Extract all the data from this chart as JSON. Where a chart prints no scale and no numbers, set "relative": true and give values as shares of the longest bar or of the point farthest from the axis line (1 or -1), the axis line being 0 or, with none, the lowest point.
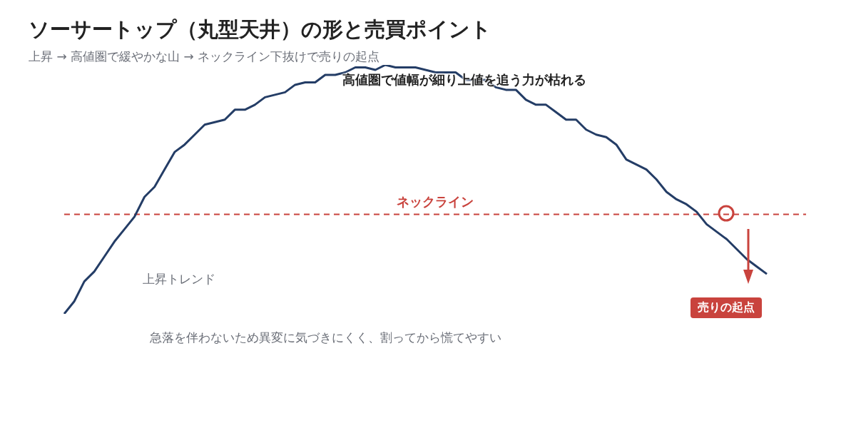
{
  "chart_data": {
    "type": "line",
    "relative": true,
    "title": "ソーサートップ（丸型天井）の形と売買ポイント",
    "subtitle": "上昇 → 高値圏で緩やかな山 → ネックライン下抜けで売りの起点",
    "categories": [
      null,
      null,
      null,
      null,
      null,
      null,
      null,
      null,
      null,
      null,
      null,
      null,
      null,
      null,
      null,
      null,
      null,
      null,
      null,
      null,
      null,
      null,
      null,
      null,
      null,
      null,
      null,
      null,
      null,
      null,
      null,
      null,
      null,
      null,
      null,
      null,
      null,
      null,
      null,
      null,
      null,
      null,
      null,
      null,
      null,
      null,
      null,
      null,
      null,
      null,
      null,
      null,
      null,
      null,
      null,
      null,
      null,
      null,
      null,
      null,
      null,
      null,
      null,
      null,
      null,
      null,
      null,
      null,
      null,
      null,
      null
    ],
    "series": [
      {
        "color": "#243d66",
        "values": [
          0,
          0.05,
          0.13,
          0.17,
          0.23,
          0.29,
          0.34,
          0.39,
          0.47,
          0.51,
          0.58,
          0.65,
          0.68,
          0.72,
          0.76,
          0.77,
          0.78,
          0.82,
          0.82,
          0.84,
          0.87,
          0.88,
          0.89,
          0.92,
          0.93,
          0.93,
          0.96,
          0.96,
          0.97,
          0.99,
          0.99,
          0.98,
          1,
          0.99,
          0.99,
          0.99,
          0.98,
          0.97,
          0.97,
          0.97,
          0.94,
          0.94,
          0.94,
          0.91,
          0.9,
          0.9,
          0.86,
          0.84,
          0.84,
          0.81,
          0.78,
          0.78,
          0.74,
          0.72,
          0.71,
          0.68,
          0.62,
          0.6,
          0.58,
          0.54,
          0.49,
          0.46,
          0.44,
          0.41,
          0.36,
          0.33,
          0.3,
          0.26,
          0.22,
          0.19,
          0.16
        ]
      }
    ],
    "ref_lines": [
      {
        "axis": "y",
        "value": 0.4,
        "label": "ネックライン",
        "color": "#c9433d",
        "line_style": "dashed"
      }
    ],
    "annotations": [
      "高値圏で値幅が細り上値を追う力が枯れる",
      "上昇トレンド",
      "急落を伴わないため異変に気づきにくく、割ってから慌てやすい",
      "売りの起点"
    ],
    "grid": false,
    "legend": false,
    "marker": "none",
    "line_style": "solid"
  }
}
